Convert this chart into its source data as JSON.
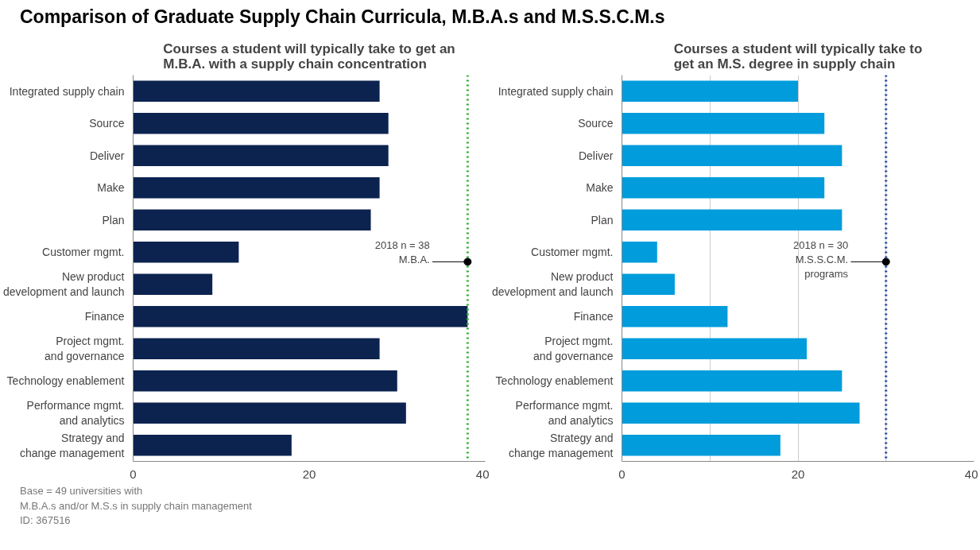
{
  "chart_data": [
    {
      "type": "bar",
      "orientation": "horizontal",
      "title": "Comparison of Graduate Supply Chain Curricula, M.B.A.s and M.S.S.C.M.s",
      "subtitle": "Courses a student will typically take to get an\nM.B.A. with a supply chain concentration",
      "categories": [
        "Integrated supply chain",
        "Source",
        "Deliver",
        "Make",
        "Plan",
        "Customer mgmt.",
        "New product\ndevelopment and launch",
        "Finance",
        "Project mgmt.\nand governance",
        "Technology enablement",
        "Performance mgmt.\nand analytics",
        "Strategy and\nchange management"
      ],
      "values": [
        28,
        29,
        29,
        28,
        27,
        12,
        9,
        38,
        28,
        30,
        31,
        18
      ],
      "color": "#0c2350",
      "xlim": [
        0,
        40
      ],
      "xticks": [
        0,
        20,
        40
      ],
      "grid": false,
      "ref_lines": [
        {
          "axis": "x",
          "value": 38,
          "label": "2018 n = 38\nM.B.A.",
          "color": "#2eaa2e",
          "line_style": "dotted"
        }
      ],
      "annotations": [
        "Base = 49 universities with\nM.B.A.s and/or M.S.s in supply chain management\nID: 367516"
      ]
    },
    {
      "type": "bar",
      "orientation": "horizontal",
      "subtitle": "Courses a student will typically take to\nget an M.S. degree in supply chain",
      "categories": [
        "Integrated supply chain",
        "Source",
        "Deliver",
        "Make",
        "Plan",
        "Customer mgmt.",
        "New product\ndevelopment and launch",
        "Finance",
        "Project mgmt.\nand governance",
        "Technology enablement",
        "Performance mgmt.\nand analytics",
        "Strategy and\nchange management"
      ],
      "values": [
        20,
        23,
        25,
        23,
        25,
        4,
        6,
        12,
        21,
        25,
        27,
        18
      ],
      "color": "#019cdb",
      "xlim": [
        0,
        40
      ],
      "xticks": [
        0,
        {
          "value": 10,
          "label": null
        },
        20,
        {
          "value": 30,
          "label": null
        },
        40
      ],
      "grid": "x",
      "ref_lines": [
        {
          "axis": "x",
          "value": 30,
          "label": "2018 n = 30\nM.S.S.C.M.\nprograms",
          "color": "#1a3e9a",
          "line_style": "dotted"
        }
      ]
    }
  ]
}
